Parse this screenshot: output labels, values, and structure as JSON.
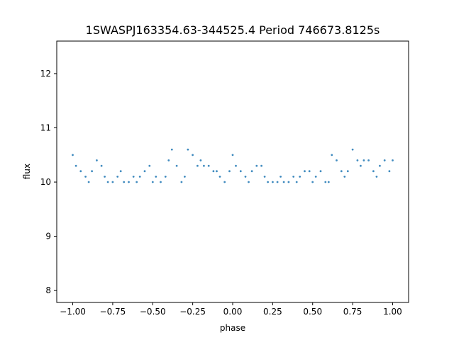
{
  "chart_data": {
    "type": "scatter",
    "title": "1SWASPJ163354.63-344525.4 Period 746673.8125s",
    "xlabel": "phase",
    "ylabel": "flux",
    "xlim": [
      -1.1,
      1.1
    ],
    "ylim": [
      7.78,
      12.6
    ],
    "x_ticks": [
      -1.0,
      -0.75,
      -0.5,
      -0.25,
      0.0,
      0.25,
      0.5,
      0.75,
      1.0
    ],
    "x_tick_labels": [
      "−1.00",
      "−0.75",
      "−0.50",
      "−0.25",
      "0.00",
      "0.25",
      "0.50",
      "0.75",
      "1.00"
    ],
    "y_ticks": [
      8,
      9,
      10,
      11,
      12
    ],
    "y_tick_labels": [
      "8",
      "9",
      "10",
      "11",
      "12"
    ],
    "grid": false,
    "legend": "none",
    "point_color": "#1f77b4",
    "series": [
      {
        "x": [
          -1.0,
          -0.98,
          -0.95,
          -0.92,
          -0.9,
          -0.88,
          -0.85,
          -0.82,
          -0.8,
          -0.78,
          -0.75,
          -0.72,
          -0.7,
          -0.68,
          -0.65,
          -0.62,
          -0.6,
          -0.58,
          -0.55,
          -0.52,
          -0.5,
          -0.48,
          -0.45,
          -0.42,
          -0.4,
          -0.38,
          -0.35,
          -0.32,
          -0.3,
          -0.28,
          -0.25,
          -0.22,
          -0.2,
          -0.18,
          -0.15,
          -0.12,
          -0.1,
          -0.08,
          -0.05,
          -0.02,
          0.0,
          0.02,
          0.05,
          0.08,
          0.1,
          0.12,
          0.15,
          0.18,
          0.2,
          0.22,
          0.25,
          0.28,
          0.3,
          0.32,
          0.35,
          0.38,
          0.4,
          0.42,
          0.45,
          0.48,
          0.5,
          0.52,
          0.55,
          0.58,
          0.6,
          0.62,
          0.65,
          0.68,
          0.7,
          0.72,
          0.75,
          0.78,
          0.8,
          0.82,
          0.85,
          0.88,
          0.9,
          0.92,
          0.95,
          0.98,
          1.0
        ],
        "y": [
          10.5,
          10.3,
          10.2,
          10.1,
          10.0,
          10.2,
          10.4,
          10.3,
          10.1,
          10.0,
          10.0,
          10.1,
          10.2,
          10.0,
          10.0,
          10.1,
          10.0,
          10.1,
          10.2,
          10.3,
          10.0,
          10.1,
          10.0,
          10.1,
          10.4,
          10.6,
          10.3,
          10.0,
          10.1,
          10.6,
          10.5,
          10.3,
          10.4,
          10.3,
          10.3,
          10.2,
          10.2,
          10.1,
          10.0,
          10.2,
          10.5,
          10.3,
          10.2,
          10.1,
          10.0,
          10.2,
          10.3,
          10.3,
          10.1,
          10.0,
          10.0,
          10.0,
          10.1,
          10.0,
          10.0,
          10.1,
          10.0,
          10.1,
          10.2,
          10.2,
          10.0,
          10.1,
          10.2,
          10.0,
          10.0,
          10.5,
          10.4,
          10.2,
          10.1,
          10.2,
          10.6,
          10.4,
          10.3,
          10.4,
          10.4,
          10.2,
          10.1,
          10.3,
          10.4,
          10.2,
          10.4
        ]
      }
    ]
  }
}
